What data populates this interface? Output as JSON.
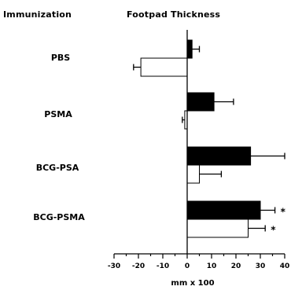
{
  "chart_data": {
    "type": "bar",
    "orientation": "horizontal",
    "header_left": "Immunization",
    "header_right": "Footpad Thickness",
    "categories": [
      "PBS",
      "PSMA",
      "BCG-PSA",
      "BCG-PSMA"
    ],
    "series": [
      {
        "fill": "#000000",
        "values": [
          2,
          11,
          26,
          30
        ],
        "errors": [
          3,
          8,
          14,
          6
        ],
        "significance": [
          "",
          "",
          "",
          "*"
        ]
      },
      {
        "fill": "#ffffff",
        "values": [
          -19,
          -1,
          5,
          25
        ],
        "errors": [
          3,
          1,
          9,
          7
        ],
        "significance": [
          "",
          "",
          "",
          "*"
        ]
      }
    ],
    "xlim": [
      -30,
      40
    ],
    "xticks": [
      -30,
      -20,
      -10,
      0,
      10,
      20,
      30,
      40
    ],
    "xtick_labels": [
      "-30",
      "-20",
      "-10",
      "0",
      "10",
      "20",
      "30",
      "40"
    ],
    "xlabel": "mm x 100",
    "grid": false,
    "legend": "none",
    "colors": {
      "bar_dark": "#000000",
      "bar_light": "#ffffff",
      "stroke": "#000000"
    }
  }
}
